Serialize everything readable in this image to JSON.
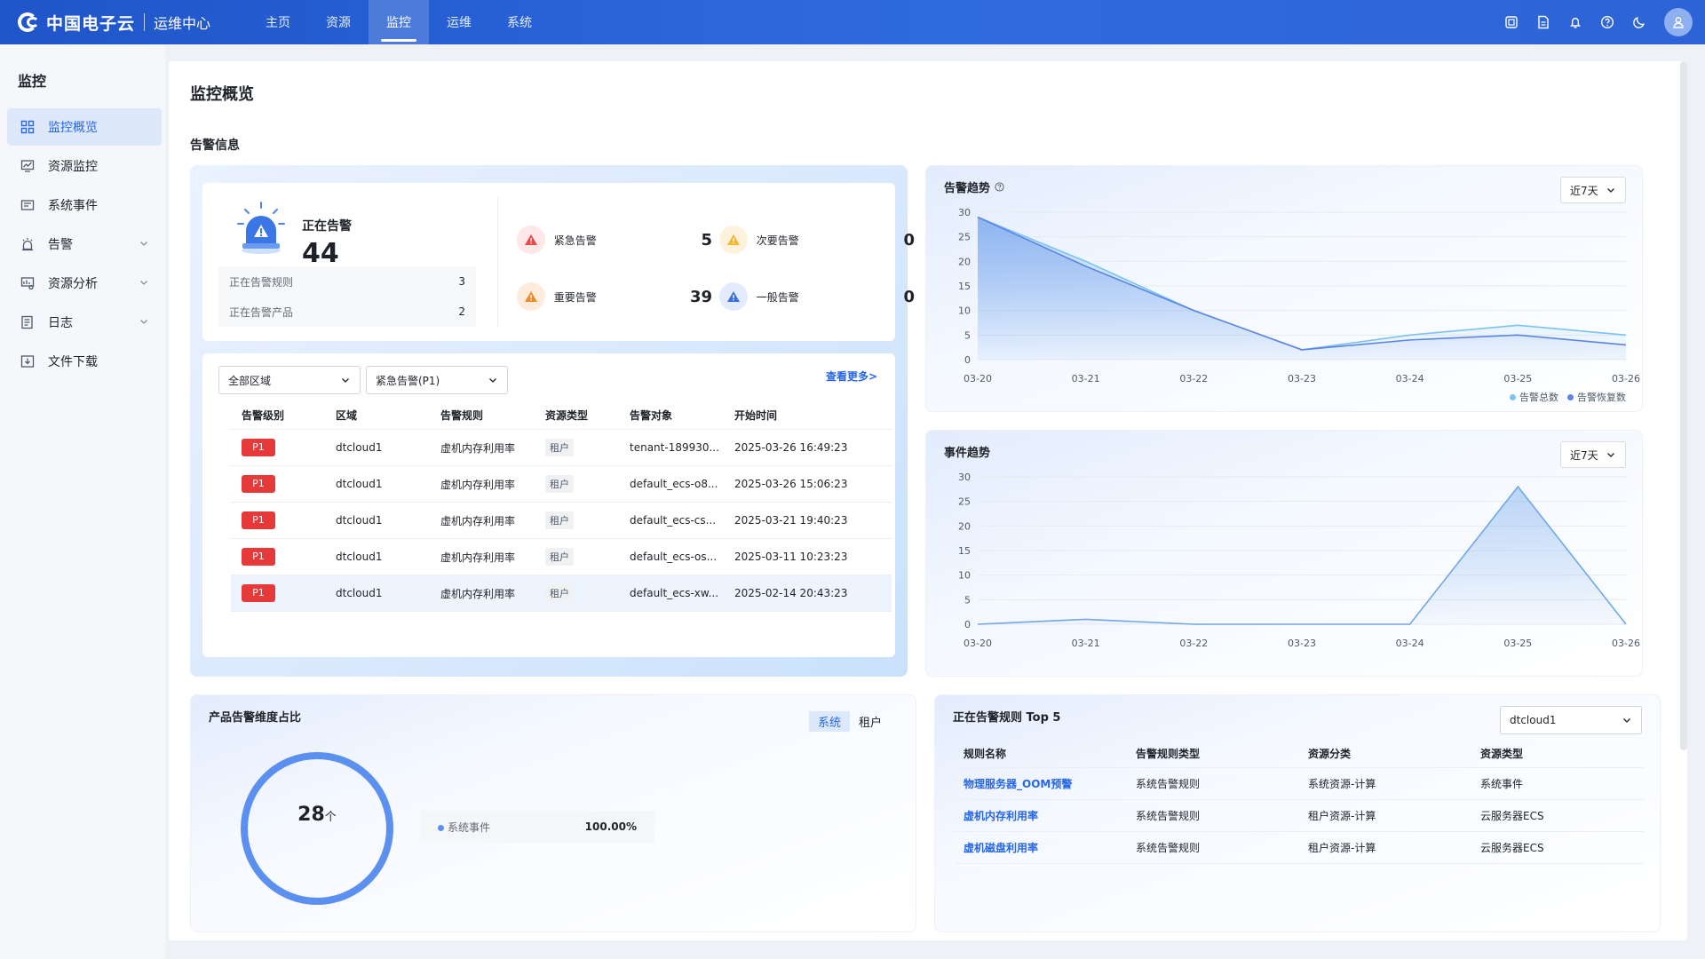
{
  "header": {
    "brand": "中国电子云",
    "sub": "运维中心",
    "nav": [
      "主页",
      "资源",
      "监控",
      "运维",
      "系统"
    ],
    "active_nav": "监控"
  },
  "sidebar": {
    "title": "监控",
    "items": [
      {
        "label": "监控概览",
        "active": true
      },
      {
        "label": "资源监控"
      },
      {
        "label": "系统事件"
      },
      {
        "label": "告警",
        "expandable": true
      },
      {
        "label": "资源分析",
        "expandable": true
      },
      {
        "label": "日志",
        "expandable": true
      },
      {
        "label": "文件下载"
      }
    ]
  },
  "page": {
    "title": "监控概览",
    "section": "告警信息"
  },
  "summary": {
    "label": "正在告警",
    "total": "44",
    "rules_label": "正在告警规则",
    "rules_count": "3",
    "products_label": "正在告警产品",
    "products_count": "2",
    "severities": [
      {
        "name": "紧急告警",
        "count": "5",
        "color": "#e84848"
      },
      {
        "name": "次要告警",
        "count": "0",
        "color": "#f5b731"
      },
      {
        "name": "重要告警",
        "count": "39",
        "color": "#f08a2c"
      },
      {
        "name": "一般告警",
        "count": "0",
        "color": "#3a6fe0"
      }
    ]
  },
  "alert_table": {
    "region_select": "全部区域",
    "level_select": "紧急告警(P1)",
    "more": "查看更多>",
    "headers": [
      "告警级别",
      "区域",
      "告警规则",
      "资源类型",
      "告警对象",
      "开始时间"
    ],
    "rows": [
      {
        "level": "P1",
        "region": "dtcloud1",
        "rule": "虚机内存利用率",
        "type": "租户",
        "object": "tenant-189930...",
        "time": "2025-03-26 16:49:23"
      },
      {
        "level": "P1",
        "region": "dtcloud1",
        "rule": "虚机内存利用率",
        "type": "租户",
        "object": "default_ecs-o8...",
        "time": "2025-03-26 15:06:23"
      },
      {
        "level": "P1",
        "region": "dtcloud1",
        "rule": "虚机内存利用率",
        "type": "租户",
        "object": "default_ecs-cs...",
        "time": "2025-03-21 19:40:23"
      },
      {
        "level": "P1",
        "region": "dtcloud1",
        "rule": "虚机内存利用率",
        "type": "租户",
        "object": "default_ecs-os...",
        "time": "2025-03-11 10:23:23"
      },
      {
        "level": "P1",
        "region": "dtcloud1",
        "rule": "虚机内存利用率",
        "type": "租户",
        "object": "default_ecs-xw...",
        "time": "2025-02-14 20:43:23"
      }
    ]
  },
  "chart_data": [
    {
      "type": "area",
      "title": "告警趋势",
      "range": "近7天",
      "categories": [
        "03-20",
        "03-21",
        "03-22",
        "03-23",
        "03-24",
        "03-25",
        "03-26"
      ],
      "ylim": [
        0,
        30
      ],
      "yticks": [
        0,
        5,
        10,
        15,
        20,
        25,
        30
      ],
      "series": [
        {
          "name": "告警总数",
          "values": [
            29,
            20,
            10,
            2,
            5,
            7,
            5
          ],
          "color": "#7cc2f3"
        },
        {
          "name": "告警恢复数",
          "values": [
            29,
            19,
            10,
            2,
            4,
            5,
            3
          ],
          "color": "#5b84e6"
        }
      ]
    },
    {
      "type": "area",
      "title": "事件趋势",
      "range": "近7天",
      "categories": [
        "03-20",
        "03-21",
        "03-22",
        "03-23",
        "03-24",
        "03-25",
        "03-26"
      ],
      "ylim": [
        0,
        30
      ],
      "yticks": [
        0,
        5,
        10,
        15,
        20,
        25,
        30
      ],
      "series": [
        {
          "values": [
            0,
            1,
            0,
            0,
            0,
            28,
            0
          ],
          "color": "#6fa6ec"
        }
      ]
    }
  ],
  "product_ratio": {
    "title": "产品告警维度占比",
    "tabs": [
      "系统",
      "租户"
    ],
    "active_tab": "系统",
    "total": "28",
    "unit": "个",
    "items": [
      {
        "name": "系统事件",
        "percent": "100.00%",
        "fraction": 1.0
      }
    ]
  },
  "top_rules": {
    "title": "正在告警规则 Top 5",
    "region": "dtcloud1",
    "headers": [
      "规则名称",
      "告警规则类型",
      "资源分类",
      "资源类型"
    ],
    "rows": [
      [
        "物理服务器_OOM预警",
        "系统告警规则",
        "系统资源-计算",
        "系统事件"
      ],
      [
        "虚机内存利用率",
        "系统告警规则",
        "租户资源-计算",
        "云服务器ECS"
      ],
      [
        "虚机磁盘利用率",
        "系统告警规则",
        "租户资源-计算",
        "云服务器ECS"
      ]
    ]
  },
  "colors": {
    "brand": "#2666e6",
    "danger": "#e63a3a"
  }
}
